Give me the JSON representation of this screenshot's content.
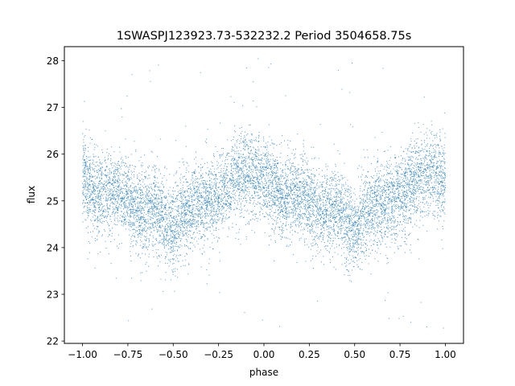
{
  "chart_data": {
    "type": "scatter",
    "title": "1SWASPJ123923.73-532232.2 Period 3504658.75s",
    "xlabel": "phase",
    "ylabel": "flux",
    "xlim": [
      -1.1,
      1.1
    ],
    "ylim": [
      21.95,
      28.3
    ],
    "xticks": [
      -1.0,
      -0.75,
      -0.5,
      -0.25,
      0.0,
      0.25,
      0.5,
      0.75,
      1.0
    ],
    "xtick_labels": [
      "−1.00",
      "−0.75",
      "−0.50",
      "−0.25",
      "0.00",
      "0.25",
      "0.50",
      "0.75",
      "1.00"
    ],
    "yticks": [
      22,
      23,
      24,
      25,
      26,
      27,
      28
    ],
    "ytick_labels": [
      "22",
      "23",
      "24",
      "25",
      "26",
      "27",
      "28"
    ],
    "grid": false,
    "marker_color": "#1f77b4",
    "series": [
      {
        "phase_profile": {
          "phase": [
            0.0,
            0.05,
            0.1,
            0.15,
            0.2,
            0.25,
            0.3,
            0.35,
            0.4,
            0.45,
            0.5,
            0.55,
            0.6,
            0.65,
            0.7,
            0.75,
            0.8,
            0.85,
            0.9,
            0.95,
            1.0
          ],
          "flux_mean": [
            25.5,
            25.3,
            25.1,
            25.15,
            25.2,
            25.0,
            24.8,
            24.75,
            24.9,
            24.6,
            24.35,
            24.7,
            24.85,
            25.0,
            24.95,
            25.1,
            25.3,
            25.5,
            25.6,
            25.55,
            25.5
          ],
          "flux_spread": 0.45,
          "flux_min": 22.2,
          "flux_max": 28.1
        },
        "points_per_unit_phase": 4500
      }
    ]
  }
}
